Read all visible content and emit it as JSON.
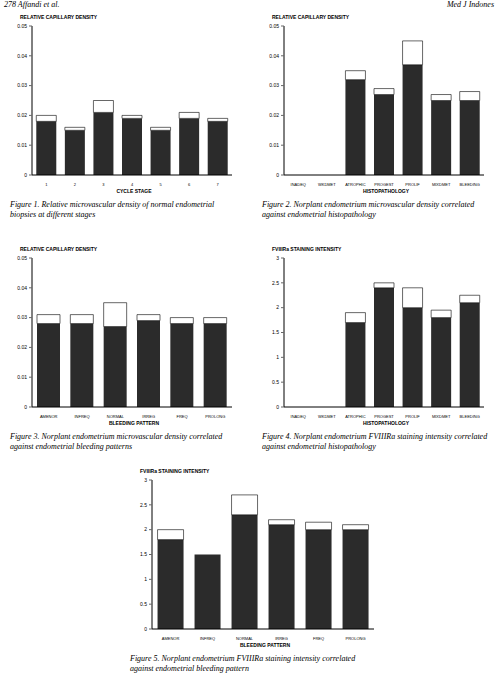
{
  "page_header": {
    "left": "278 Affandi et al.",
    "right": "Med J Indones"
  },
  "chart_data": [
    {
      "type": "bar",
      "y_label": "RELATIVE CAPILLARY DENSITY",
      "x_label": "CYCLE STAGE",
      "caption": "Figure 1. Relative microvascular density of normal endometrial biopsies at different stages",
      "categories": [
        "1",
        "2",
        "3",
        "4",
        "5",
        "6",
        "7"
      ],
      "values": [
        0.018,
        0.015,
        0.021,
        0.019,
        0.015,
        0.019,
        0.018
      ],
      "errors": [
        0.002,
        0.001,
        0.004,
        0.001,
        0.001,
        0.002,
        0.001
      ],
      "color": "#2b2b2b",
      "ylim": [
        0,
        0.05
      ],
      "yticks": [
        0,
        0.01,
        0.02,
        0.03,
        0.04,
        0.05
      ]
    },
    {
      "type": "bar",
      "y_label": "RELATIVE CAPILLARY DENSITY",
      "x_label": "HISTOPATHOLOGY",
      "caption": "Figure 2. Norplant endometrium microvascular density correlated against endometrial histopathology",
      "categories": [
        "INADEQ",
        "WKDMET",
        "ATROPHIC",
        "PROGEST",
        "PROLIF",
        "MIXDMET",
        "BLEEDING"
      ],
      "values": [
        null,
        null,
        0.032,
        0.027,
        0.037,
        0.025,
        0.025
      ],
      "errors": [
        null,
        null,
        0.003,
        0.002,
        0.008,
        0.002,
        0.003
      ],
      "color": "#2b2b2b",
      "ylim": [
        0,
        0.05
      ],
      "yticks": [
        0,
        0.01,
        0.02,
        0.03,
        0.04,
        0.05
      ]
    },
    {
      "type": "bar",
      "y_label": "RELATIVE CAPILLARY DENSITY",
      "x_label": "BLEEDING PATTERN",
      "caption": "Figure 3. Norplant endometrium microvascular density correlated against endometrial bleeding patterns",
      "categories": [
        "AMENOR",
        "INFREQ",
        "NORMAL",
        "IRREG",
        "FREQ",
        "PROLONG"
      ],
      "values": [
        0.028,
        0.028,
        0.027,
        0.029,
        0.028,
        0.028
      ],
      "errors": [
        0.003,
        0.003,
        0.008,
        0.002,
        0.002,
        0.002
      ],
      "color": "#2b2b2b",
      "ylim": [
        0,
        0.05
      ],
      "yticks": [
        0,
        0.01,
        0.02,
        0.03,
        0.04,
        0.05
      ]
    },
    {
      "type": "bar",
      "y_label": "FVIIIRa STAINING INTENSITY",
      "x_label": "HISTOPATHOLOGY",
      "caption": "Figure 4. Norplant endometrium FVIIIRa staining intensity correlated against endometrial histopathology",
      "categories": [
        "INADEQ",
        "WKDMET",
        "ATROPHIC",
        "PROGEST",
        "PROLIF",
        "MIXDMET",
        "BLEEDING"
      ],
      "values": [
        null,
        null,
        1.7,
        2.4,
        2.0,
        1.8,
        2.1
      ],
      "errors": [
        null,
        null,
        0.2,
        0.1,
        0.4,
        0.15,
        0.15
      ],
      "color": "#2b2b2b",
      "ylim": [
        0,
        3
      ],
      "yticks": [
        0,
        0.5,
        1,
        1.5,
        2,
        2.5,
        3
      ]
    },
    {
      "type": "bar",
      "y_label": "FVIIIRa STAINING INTENSITY",
      "x_label": "BLEEDING PATTERN",
      "caption": "Figure 5. Norplant endometrium FVIIIRa staining intensity correlated against endometrial bleeding pattern",
      "categories": [
        "AMENOR",
        "INFREQ",
        "NORMAL",
        "IRREG",
        "FREQ",
        "PROLONG"
      ],
      "values": [
        1.8,
        1.5,
        2.3,
        2.1,
        2.0,
        2.0
      ],
      "errors": [
        0.2,
        0,
        0.4,
        0.1,
        0.15,
        0.1
      ],
      "color": "#2b2b2b",
      "ylim": [
        0,
        3
      ],
      "yticks": [
        0,
        0.5,
        1,
        1.5,
        2,
        2.5,
        3
      ]
    }
  ]
}
